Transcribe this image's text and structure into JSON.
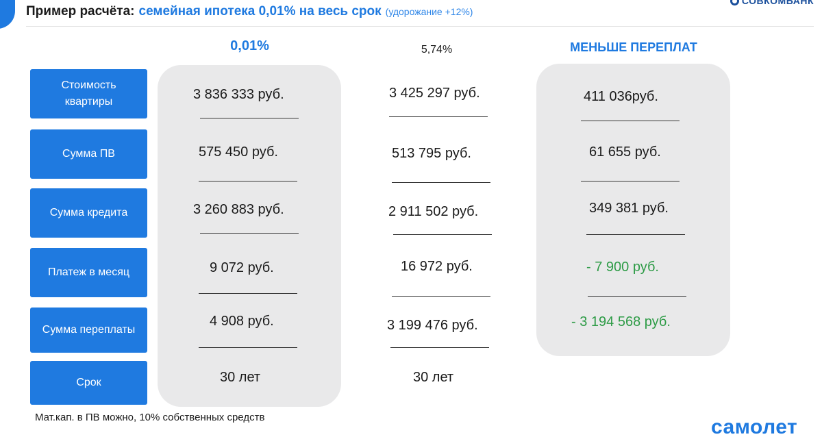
{
  "header": {
    "lead": "Пример расчёта:",
    "highlight": "семейная ипотека 0,01% на весь срок",
    "note": "(удорожание +12%)"
  },
  "brand": {
    "bank": "СОВКОМБАНК",
    "developer": "самолет"
  },
  "columns": {
    "rate_a": "0,01%",
    "rate_b": "5,74%",
    "savings": "МЕНЬШЕ ПЕРЕПЛАТ"
  },
  "rows": [
    {
      "label": "Стоимость квартиры",
      "rate_a": "3 836 333 руб.",
      "rate_b": "3 425 297 руб.",
      "savings": "411 036руб."
    },
    {
      "label": "Сумма ПВ",
      "rate_a": "575 450 руб.",
      "rate_b": "513 795 руб.",
      "savings": "61 655 руб."
    },
    {
      "label": "Сумма кредита",
      "rate_a": "3 260 883 руб.",
      "rate_b": "2 911 502 руб.",
      "savings": "349 381 руб."
    },
    {
      "label": "Платеж в месяц",
      "rate_a": "9 072 руб.",
      "rate_b": "16 972 руб.",
      "savings": "- 7 900 руб."
    },
    {
      "label": "Сумма переплаты",
      "rate_a": "4 908 руб.",
      "rate_b": "3 199 476 руб.",
      "savings": "- 3 194 568 руб."
    },
    {
      "label": "Срок",
      "rate_a": "30 лет",
      "rate_b": "30 лет",
      "savings": ""
    }
  ],
  "colors": {
    "accent": "#1f7ae0",
    "negative_savings": "#2d9b46",
    "panel": "#e9e9ea"
  },
  "footnote": "Мат.кап. в ПВ можно, 10% собственных средств"
}
